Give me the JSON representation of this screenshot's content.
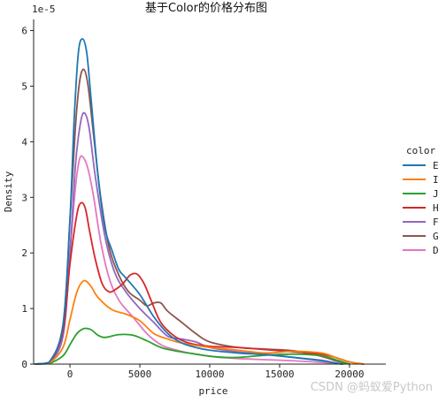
{
  "chart_data": {
    "type": "line",
    "title": "基于Color的价格分布图",
    "xlabel": "price",
    "ylabel": "Density",
    "y_multiplier_label": "1e-5",
    "xlim": [
      -2600,
      22600
    ],
    "ylim": [
      0,
      6.2
    ],
    "xticks": [
      0,
      5000,
      10000,
      15000,
      20000
    ],
    "xtick_labels": [
      "0",
      "5000",
      "10000",
      "15000",
      "20000"
    ],
    "yticks": [
      0,
      1,
      2,
      3,
      4,
      5,
      6
    ],
    "ytick_labels": [
      "0",
      "1",
      "2",
      "3",
      "4",
      "5",
      "6"
    ],
    "grid": false,
    "legend_title": "color",
    "legend_position": "right",
    "series": [
      {
        "name": "E",
        "color": "#1f77b4",
        "x": [
          -2500,
          -1500,
          -500,
          0,
          300,
          600,
          900,
          1200,
          1500,
          2000,
          2500,
          3000,
          3500,
          4000,
          5000,
          6000,
          7000,
          8000,
          9000,
          10000,
          12000,
          14000,
          16000,
          18000,
          19000,
          19500
        ],
        "y": [
          0,
          0.03,
          0.7,
          2.6,
          4.4,
          5.6,
          5.85,
          5.6,
          4.8,
          3.4,
          2.45,
          2.05,
          1.7,
          1.55,
          1.25,
          0.85,
          0.55,
          0.38,
          0.3,
          0.25,
          0.2,
          0.17,
          0.12,
          0.06,
          0.02,
          0
        ]
      },
      {
        "name": "I",
        "color": "#ff7f0e",
        "x": [
          -2500,
          -1500,
          -500,
          0,
          500,
          1000,
          1500,
          2000,
          3000,
          4000,
          5000,
          6000,
          7000,
          8000,
          10000,
          12000,
          14000,
          16000,
          18000,
          19000,
          20000,
          21000
        ],
        "y": [
          0,
          0.02,
          0.3,
          0.8,
          1.3,
          1.5,
          1.4,
          1.2,
          0.98,
          0.9,
          0.78,
          0.55,
          0.45,
          0.38,
          0.3,
          0.25,
          0.2,
          0.23,
          0.2,
          0.12,
          0.04,
          0
        ]
      },
      {
        "name": "J",
        "color": "#2ca02c",
        "x": [
          -2500,
          -1500,
          -500,
          0,
          500,
          1000,
          1500,
          2000,
          2500,
          3500,
          4500,
          5500,
          6500,
          7500,
          9000,
          10500,
          12000,
          14000,
          16000,
          18000,
          19000,
          20000
        ],
        "y": [
          0,
          0.01,
          0.15,
          0.35,
          0.55,
          0.64,
          0.62,
          0.52,
          0.48,
          0.53,
          0.52,
          0.42,
          0.3,
          0.24,
          0.18,
          0.13,
          0.12,
          0.16,
          0.18,
          0.15,
          0.08,
          0
        ]
      },
      {
        "name": "H",
        "color": "#d62728",
        "x": [
          -2500,
          -1500,
          -500,
          0,
          500,
          800,
          1100,
          1400,
          1800,
          2300,
          2800,
          3300,
          3800,
          4300,
          4800,
          5300,
          5800,
          6500,
          7500,
          8500,
          10000,
          12000,
          14000,
          16000,
          18000,
          19000,
          20000,
          21000
        ],
        "y": [
          0,
          0.02,
          0.6,
          1.8,
          2.7,
          2.9,
          2.8,
          2.4,
          1.9,
          1.45,
          1.3,
          1.35,
          1.45,
          1.6,
          1.62,
          1.45,
          1.15,
          0.75,
          0.5,
          0.38,
          0.32,
          0.3,
          0.26,
          0.22,
          0.18,
          0.12,
          0.04,
          0
        ]
      },
      {
        "name": "F",
        "color": "#9467bd",
        "x": [
          -2500,
          -1500,
          -500,
          0,
          400,
          800,
          1100,
          1400,
          1800,
          2500,
          3200,
          4000,
          5000,
          6000,
          7000,
          8000,
          9000,
          10000,
          12000,
          14000,
          16000,
          18000,
          19000,
          19500
        ],
        "y": [
          0,
          0.03,
          0.5,
          2.0,
          3.6,
          4.4,
          4.5,
          4.2,
          3.4,
          2.3,
          1.65,
          1.3,
          1.0,
          0.75,
          0.5,
          0.45,
          0.4,
          0.3,
          0.22,
          0.18,
          0.12,
          0.07,
          0.02,
          0
        ]
      },
      {
        "name": "G",
        "color": "#8c564b",
        "x": [
          -2500,
          -1500,
          -500,
          0,
          400,
          700,
          1000,
          1300,
          1700,
          2200,
          2800,
          3500,
          4200,
          5000,
          5500,
          6000,
          6500,
          7000,
          8000,
          9000,
          10000,
          12000,
          14000,
          16000,
          18000,
          19000,
          20000
        ],
        "y": [
          0,
          0.03,
          0.7,
          2.6,
          4.3,
          5.1,
          5.3,
          5.0,
          4.1,
          3.0,
          2.1,
          1.6,
          1.3,
          1.15,
          1.05,
          1.1,
          1.1,
          0.95,
          0.75,
          0.55,
          0.4,
          0.3,
          0.27,
          0.24,
          0.14,
          0.06,
          0
        ]
      },
      {
        "name": "D",
        "color": "#e377c2",
        "x": [
          -2500,
          -1500,
          -500,
          0,
          400,
          700,
          1000,
          1300,
          1700,
          2200,
          2800,
          3500,
          4500,
          5500,
          6500,
          7500,
          8500,
          10000,
          12000,
          14000,
          16000,
          18000,
          19000,
          19500
        ],
        "y": [
          0,
          0.03,
          0.55,
          2.0,
          3.2,
          3.7,
          3.7,
          3.5,
          3.0,
          2.2,
          1.55,
          1.15,
          0.85,
          0.55,
          0.35,
          0.26,
          0.2,
          0.14,
          0.1,
          0.08,
          0.06,
          0.03,
          0.01,
          0
        ]
      }
    ]
  },
  "watermark": "CSDN @蚂蚁爱Python"
}
